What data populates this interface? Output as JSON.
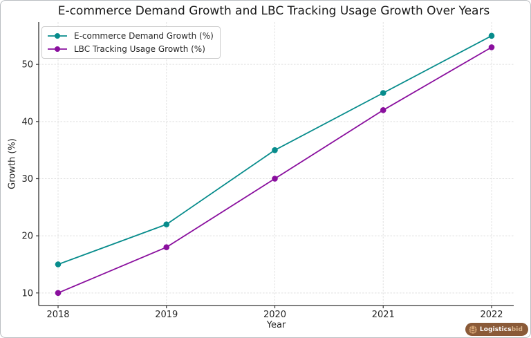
{
  "chart_data": {
    "type": "line",
    "title": "E-commerce Demand Growth and LBC Tracking Usage Growth Over Years",
    "xlabel": "Year",
    "ylabel": "Growth (%)",
    "categories": [
      "2018",
      "2019",
      "2020",
      "2021",
      "2022"
    ],
    "series": [
      {
        "name": "E-commerce Demand Growth (%)",
        "values": [
          15,
          22,
          35,
          45,
          55
        ],
        "color": "#078c8c"
      },
      {
        "name": "LBC Tracking Usage Growth (%)",
        "values": [
          10,
          18,
          30,
          42,
          53
        ],
        "color": "#8a0f9e"
      }
    ],
    "yticks": [
      10,
      20,
      30,
      40,
      50
    ],
    "ylim": [
      7.8,
      57.4
    ],
    "grid": true,
    "grid_style": "dashed",
    "legend_position": "upper-left",
    "colors": {
      "axis": "#333333",
      "grid": "#e0e0e0",
      "tick_text": "#262626",
      "background": "#ffffff"
    }
  },
  "branding": {
    "logo_icon": "wicker-ball-icon",
    "logo_text_bold": "Logistics",
    "logo_text_light": "bid",
    "logo_bg": "#8a5a38",
    "logo_icon_color": "#d2a273"
  }
}
